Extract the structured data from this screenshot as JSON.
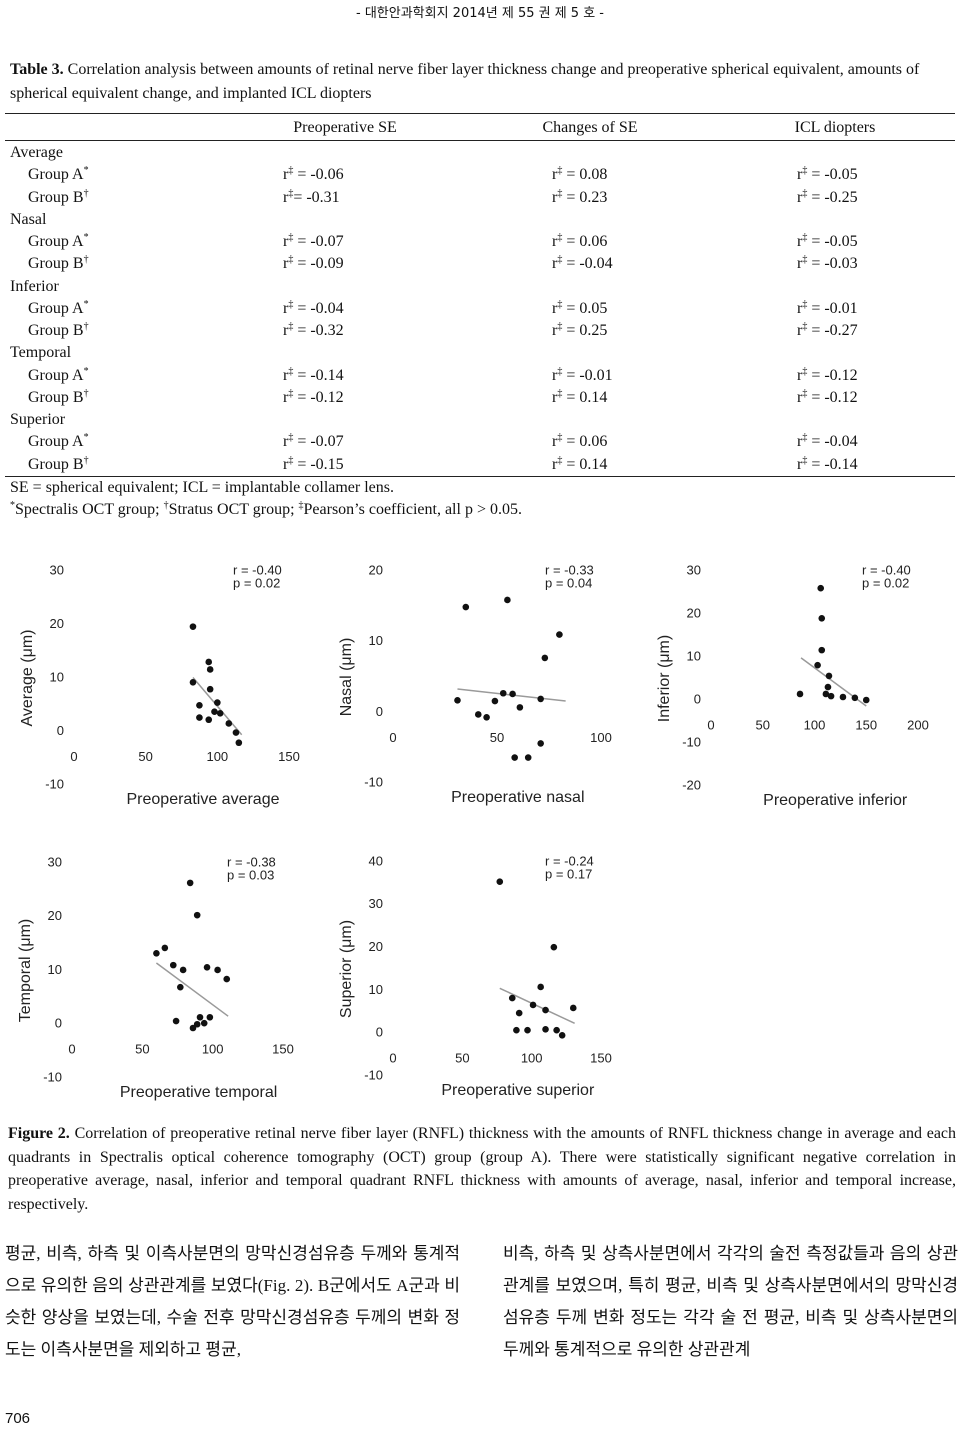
{
  "header": "- 대한안과학회지 2014년 제 55 권 제 5 호 -",
  "table": {
    "caption": {
      "label": "Table 3.",
      "text": "Correlation analysis between amounts of retinal nerve fiber layer thickness change and preoperative spherical equivalent, amounts of spherical equivalent change, and implanted ICL diopters"
    },
    "columns": [
      "Preoperative SE",
      "Changes of SE",
      "ICL diopters"
    ],
    "sections": [
      {
        "name": "Average",
        "rows": [
          {
            "label": "Group A*",
            "cells": [
              "r‡ = -0.06",
              "r‡ = 0.08",
              "r‡ = -0.05"
            ]
          },
          {
            "label": "Group B†",
            "cells": [
              "r‡= -0.31",
              "r‡ = 0.23",
              "r‡ = -0.25"
            ]
          }
        ]
      },
      {
        "name": "Nasal",
        "rows": [
          {
            "label": "Group A*",
            "cells": [
              "r‡ = -0.07",
              "r‡ = 0.06",
              "r‡ = -0.05"
            ]
          },
          {
            "label": "Group B†",
            "cells": [
              "r‡ = -0.09",
              "r‡ = -0.04",
              "r‡ = -0.03"
            ]
          }
        ]
      },
      {
        "name": "Inferior",
        "rows": [
          {
            "label": "Group A*",
            "cells": [
              "r‡ = -0.04",
              "r‡ = 0.05",
              "r‡ = -0.01"
            ]
          },
          {
            "label": "Group B†",
            "cells": [
              "r‡ = -0.32",
              "r‡ = 0.25",
              "r‡ = -0.27"
            ]
          }
        ]
      },
      {
        "name": "Temporal",
        "rows": [
          {
            "label": "Group A*",
            "cells": [
              "r‡ = -0.14",
              "r‡ = -0.01",
              "r‡ = -0.12"
            ]
          },
          {
            "label": "Group B†",
            "cells": [
              "r‡ = -0.12",
              "r‡ = 0.14",
              "r‡ = -0.12"
            ]
          }
        ]
      },
      {
        "name": "Superior",
        "rows": [
          {
            "label": "Group A*",
            "cells": [
              "r‡ = -0.07",
              "r‡ = 0.06",
              "r‡ = -0.04"
            ]
          },
          {
            "label": "Group B†",
            "cells": [
              "r‡ = -0.15",
              "r‡ = 0.14",
              "r‡ = -0.14"
            ]
          }
        ]
      }
    ],
    "notes": [
      "SE = spherical equivalent; ICL = implantable collamer lens.",
      "*Spectralis OCT group; †Stratus OCT group; ‡Pearson’s coefficient, all p > 0.05."
    ]
  },
  "chart_data": [
    {
      "type": "scatter",
      "ylabel": "Average (μm)",
      "xlabel": "Preoperative average",
      "annotations": [
        "r = -0.40",
        "p = 0.02"
      ],
      "x": [
        83,
        94,
        95,
        83,
        95,
        100,
        87.5,
        98,
        102,
        87.5,
        94,
        108,
        113,
        115
      ],
      "y": [
        19.6,
        13,
        11.6,
        9.2,
        7.9,
        5.4,
        4.9,
        3.7,
        3.4,
        2.6,
        2.2,
        1.5,
        -0.2,
        -2.1
      ],
      "trend": {
        "x": [
          83,
          117
        ],
        "y": [
          10.1,
          -0.6
        ]
      },
      "xlim": [
        0,
        150
      ],
      "ylim": [
        -10,
        30
      ],
      "xticks": [
        0,
        50,
        100,
        150
      ],
      "yticks": [
        -10,
        0,
        10,
        20,
        30
      ],
      "color": "#111111",
      "trend_color": "#9a9a9a"
    },
    {
      "type": "scatter",
      "ylabel": "Nasal (μm)",
      "xlabel": "Preoperative nasal",
      "annotations": [
        "r = -0.33",
        "p = 0.04"
      ],
      "x": [
        35,
        55,
        80,
        73,
        31,
        53,
        57.5,
        71,
        49,
        61,
        41,
        45,
        71,
        58.5,
        65
      ],
      "y": [
        14.9,
        15.9,
        11,
        7.7,
        1.7,
        2.7,
        2.6,
        1.9,
        1.6,
        0.7,
        -0.3,
        -0.7,
        -4.4,
        -6.4,
        -6.4
      ],
      "trend": {
        "x": [
          31,
          83
        ],
        "y": [
          3.3,
          1.6
        ]
      },
      "xlim": [
        0,
        100
      ],
      "ylim": [
        -10,
        20
      ],
      "xticks": [
        0,
        50,
        100
      ],
      "yticks": [
        -10,
        0,
        10,
        20
      ],
      "color": "#111111",
      "trend_color": "#9a9a9a"
    },
    {
      "type": "scatter",
      "ylabel": "Inferior (μm)",
      "xlabel": "Preoperative inferior",
      "annotations": [
        "r = -0.40",
        "p = 0.02"
      ],
      "x": [
        106,
        107,
        107,
        103,
        114,
        113,
        86,
        116,
        139,
        150,
        127.5,
        111
      ],
      "y": [
        26,
        19,
        11.6,
        8.1,
        5.6,
        3,
        1.4,
        0.9,
        0.5,
        0,
        0.7,
        1.4
      ],
      "trend": {
        "x": [
          87,
          150
        ],
        "y": [
          9.8,
          -1.4
        ]
      },
      "xlim": [
        0,
        200
      ],
      "ylim": [
        -20,
        30
      ],
      "xticks": [
        0,
        50,
        100,
        150,
        200
      ],
      "yticks": [
        -20,
        -10,
        0,
        10,
        20,
        30
      ],
      "color": "#111111",
      "trend_color": "#9a9a9a"
    },
    {
      "type": "scatter",
      "ylabel": "Temporal (μm)",
      "xlabel": "Preoperative temporal",
      "annotations": [
        "r = -0.38",
        "p = 0.03"
      ],
      "x": [
        84,
        89,
        60,
        66,
        72,
        79,
        96,
        103.5,
        110,
        77,
        91,
        98,
        94,
        89,
        74,
        86
      ],
      "y": [
        26.3,
        20.3,
        13.2,
        14.2,
        11,
        10.1,
        10.6,
        10.1,
        8.4,
        6.9,
        1.3,
        1.3,
        0.2,
        0,
        0.6,
        -0.7
      ],
      "trend": {
        "x": [
          60,
          111
        ],
        "y": [
          11.4,
          1.5
        ]
      },
      "xlim": [
        0,
        150
      ],
      "ylim": [
        -10,
        30
      ],
      "xticks": [
        0,
        50,
        100,
        150
      ],
      "yticks": [
        -10,
        0,
        10,
        20,
        30
      ],
      "color": "#111111",
      "trend_color": "#9a9a9a"
    },
    {
      "type": "scatter",
      "ylabel": "Superior (μm)",
      "xlabel": "Preoperative superior",
      "annotations": [
        "r = -0.24",
        "p = 0.17"
      ],
      "x": [
        77,
        116,
        106.5,
        86,
        101,
        110,
        130,
        91,
        110,
        118,
        122,
        89,
        97
      ],
      "y": [
        35.4,
        20.1,
        10.8,
        8.2,
        6.6,
        5.4,
        5.9,
        4.7,
        0.9,
        0.7,
        -0.5,
        0.7,
        0.7
      ],
      "trend": {
        "x": [
          77,
          131
        ],
        "y": [
          10.5,
          2.3
        ]
      },
      "xlim": [
        0,
        150
      ],
      "ylim": [
        -10,
        40
      ],
      "xticks": [
        0,
        50,
        100,
        150
      ],
      "yticks": [
        -10,
        0,
        10,
        20,
        30,
        40
      ],
      "color": "#111111",
      "trend_color": "#9a9a9a"
    }
  ],
  "figure_caption": {
    "label": "Figure 2.",
    "text": "Correlation of preoperative retinal nerve fiber layer (RNFL) thickness with the amounts of RNFL thickness change in average and each quadrants in Spectralis optical coherence tomography (OCT) group (group A). There were statistically significant negative correlation in preoperative average, nasal, inferior and temporal quadrant RNFL thickness with amounts of average, nasal, inferior and temporal increase, respectively."
  },
  "body": [
    "평균, 비측, 하측 및 이측사분면의 망막신경섬유층 두께와 통계적으로 유의한 음의 상관관계를 보였다(Fig. 2). B군에서도 A군과 비슷한 양상을 보였는데, 수술 전후 망막신경섬유층 두께의 변화 정도는 이측사분면을 제외하고 평균,",
    "비측, 하측 및 상측사분면에서 각각의 술전 측정값들과 음의 상관관계를 보였으며, 특히 평균, 비측 및 상측사분면에서의 망막신경섬유층 두께 변화 정도는 각각 술 전 평균, 비측 및 상측사분면의 두께와 통계적으로 유의한 상관관계"
  ],
  "page_number": "706"
}
